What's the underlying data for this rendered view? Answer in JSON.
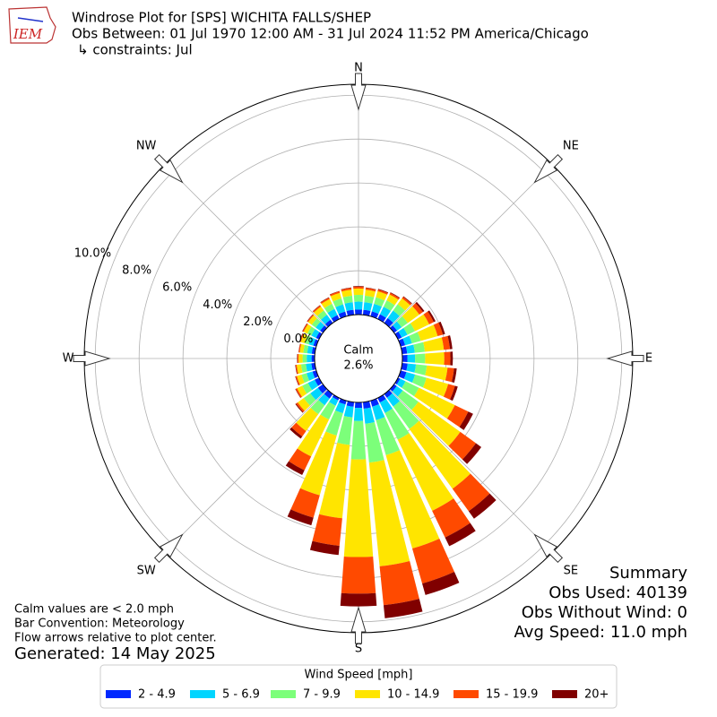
{
  "chart_data": {
    "type": "windrose",
    "logo": "IEM",
    "title": "Windrose Plot for [SPS] WICHITA FALLS/SHEP",
    "subtitle": "Obs Between: 01 Jul 1970 12:00 AM - 31 Jul 2024 11:52 PM America/Chicago",
    "constraints": "↳ constraints: Jul",
    "calm_label": "Calm",
    "calm_value_label": "2.6%",
    "direction_labels": [
      "N",
      "NE",
      "E",
      "SE",
      "S",
      "SW",
      "W",
      "NW"
    ],
    "x": [
      0,
      10,
      20,
      30,
      40,
      50,
      60,
      70,
      80,
      90,
      100,
      110,
      120,
      130,
      140,
      150,
      160,
      170,
      180,
      190,
      200,
      210,
      220,
      230,
      240,
      250,
      260,
      270,
      280,
      290,
      300,
      310,
      320,
      330,
      340,
      350
    ],
    "ylim": [
      0,
      10.5
    ],
    "yticks": [
      {
        "value": 0,
        "label": "0.0%"
      },
      {
        "value": 2,
        "label": "2.0%"
      },
      {
        "value": 4,
        "label": "4.0%"
      },
      {
        "value": 6,
        "label": "6.0%"
      },
      {
        "value": 8,
        "label": "8.0%"
      },
      {
        "value": 10,
        "label": "10.0%"
      }
    ],
    "grid": true,
    "legend_title": "Wind Speed [mph]",
    "series": [
      {
        "name": "2 - 4.9",
        "color": "#0028ff",
        "values": [
          0.23,
          0.23,
          0.23,
          0.24,
          0.27,
          0.17,
          0.19,
          0.21,
          0.23,
          0.23,
          0.25,
          0.27,
          0.11,
          0.15,
          0.21,
          0.23,
          0.28,
          0.3,
          0.25,
          0.21,
          0.18,
          0.12,
          0.25,
          0.28,
          0.22,
          0.18,
          0.16,
          0.14,
          0.14,
          0.14,
          0.15,
          0.16,
          0.18,
          0.2,
          0.22,
          0.23
        ]
      },
      {
        "name": "5 - 6.9",
        "color": "#00d5ff",
        "values": [
          0.36,
          0.35,
          0.36,
          0.38,
          0.42,
          0.26,
          0.29,
          0.32,
          0.35,
          0.35,
          0.38,
          0.41,
          0.27,
          0.34,
          0.49,
          0.53,
          0.64,
          0.69,
          0.6,
          0.49,
          0.41,
          0.27,
          0.38,
          0.43,
          0.34,
          0.28,
          0.25,
          0.22,
          0.21,
          0.22,
          0.24,
          0.25,
          0.28,
          0.31,
          0.34,
          0.35
        ]
      },
      {
        "name": "7 - 9.9",
        "color": "#7cff7a",
        "values": [
          0.31,
          0.3,
          0.31,
          0.32,
          0.36,
          0.34,
          0.38,
          0.42,
          0.46,
          0.46,
          0.5,
          0.54,
          0.68,
          0.88,
          1.26,
          1.35,
          1.66,
          1.78,
          1.75,
          1.26,
          1.06,
          0.7,
          0.5,
          0.37,
          0.29,
          0.24,
          0.22,
          0.19,
          0.18,
          0.19,
          0.2,
          0.22,
          0.24,
          0.26,
          0.29,
          0.3
        ]
      },
      {
        "name": "10 - 14.9",
        "color": "#ffe500",
        "values": [
          0.29,
          0.27,
          0.29,
          0.3,
          0.33,
          0.65,
          0.72,
          0.8,
          0.87,
          0.87,
          0.95,
          1.03,
          1.82,
          2.35,
          3.36,
          3.6,
          4.42,
          4.75,
          4.45,
          3.36,
          2.83,
          1.87,
          0.95,
          0.34,
          0.26,
          0.22,
          0.2,
          0.18,
          0.16,
          0.18,
          0.19,
          0.2,
          0.22,
          0.24,
          0.26,
          0.27
        ]
      },
      {
        "name": "15 - 19.9",
        "color": "#ff4a00",
        "values": [
          0.08,
          0.08,
          0.08,
          0.08,
          0.09,
          0.2,
          0.23,
          0.25,
          0.28,
          0.28,
          0.3,
          0.32,
          0.68,
          0.88,
          1.26,
          1.35,
          1.66,
          1.78,
          1.67,
          1.26,
          1.06,
          0.7,
          0.3,
          0.09,
          0.07,
          0.06,
          0.05,
          0.05,
          0.05,
          0.05,
          0.05,
          0.05,
          0.06,
          0.07,
          0.07,
          0.08
        ]
      },
      {
        "name": "20+",
        "color": "#800000",
        "values": [
          0.03,
          0.02,
          0.03,
          0.03,
          0.03,
          0.08,
          0.09,
          0.1,
          0.11,
          0.11,
          0.12,
          0.13,
          0.24,
          0.3,
          0.42,
          0.44,
          0.54,
          0.6,
          0.58,
          0.42,
          0.36,
          0.24,
          0.12,
          0.04,
          0.02,
          0.02,
          0.02,
          0.02,
          0.01,
          0.02,
          0.02,
          0.02,
          0.02,
          0.02,
          0.02,
          0.02
        ]
      }
    ],
    "summary": [
      "Summary",
      "Obs Used: 40139",
      "Obs Without Wind: 0",
      "Avg Speed: 11.0 mph"
    ],
    "notes": [
      "Calm values are < 2.0 mph",
      "Bar Convention: Meteorology",
      "Flow arrows relative to plot center."
    ],
    "generated": "Generated: 14 May 2025"
  }
}
